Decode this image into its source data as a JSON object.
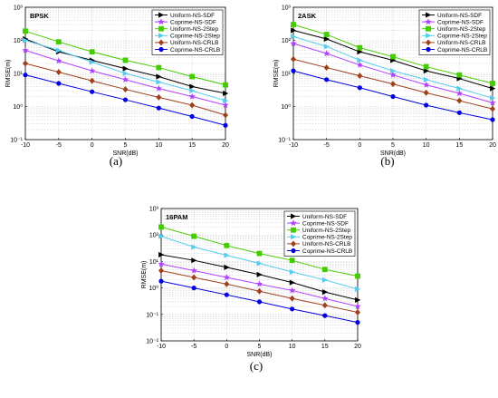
{
  "legend": [
    "Uniform-NS-SDF",
    "Coprime-NS-SDF",
    "Uniform-NS-2Step",
    "Coprime-NS-2Step",
    "Uniform-NS-CRLB",
    "Coprime-NS-CRLB"
  ],
  "colors": [
    "#000000",
    "#b040ff",
    "#44cc00",
    "#55ccee",
    "#a0401a",
    "#0000e0"
  ],
  "markers": [
    "triangle-right",
    "star",
    "square",
    "triangle-right",
    "diamond",
    "circle"
  ],
  "chart_data": [
    {
      "type": "line",
      "panel": "(a)",
      "label": "BPSK",
      "xlabel": "SNR(dB)",
      "ylabel": "RMSE(m)",
      "xlim": [
        -10,
        20
      ],
      "xticks": [
        -10,
        -5,
        0,
        5,
        10,
        15,
        20
      ],
      "ylim": [
        0.1,
        1000
      ],
      "yscale": "log",
      "yticklabels": [
        "10⁻¹",
        "10⁰",
        "10¹",
        "10²",
        "10³"
      ],
      "grid": true,
      "legend_position": "top-right",
      "x": [
        -10,
        -5,
        0,
        5,
        10,
        15,
        20
      ],
      "series": [
        {
          "name": "Uniform-NS-SDF",
          "values": [
            110,
            45,
            25,
            14,
            8,
            4,
            2.5
          ]
        },
        {
          "name": "Coprime-NS-SDF",
          "values": [
            50,
            24,
            12,
            6.5,
            3.5,
            2,
            1.1
          ]
        },
        {
          "name": "Uniform-NS-2Step",
          "values": [
            190,
            90,
            45,
            25,
            15,
            8,
            4.5
          ]
        },
        {
          "name": "Coprime-NS-2Step",
          "values": [
            100,
            50,
            22,
            10,
            5.5,
            3,
            1.5
          ]
        },
        {
          "name": "Uniform-NS-CRLB",
          "values": [
            20,
            11,
            6,
            3.3,
            1.9,
            1.1,
            0.55
          ]
        },
        {
          "name": "Coprime-NS-CRLB",
          "values": [
            9,
            5,
            2.8,
            1.6,
            0.9,
            0.5,
            0.27
          ]
        }
      ]
    },
    {
      "type": "line",
      "panel": "(b)",
      "label": "2ASK",
      "xlabel": "SNR(dB)",
      "ylabel": "RMSE(m)",
      "xlim": [
        -10,
        20
      ],
      "xticks": [
        -10,
        -5,
        0,
        5,
        10,
        15,
        20
      ],
      "ylim": [
        0.1,
        1000
      ],
      "yscale": "log",
      "yticklabels": [
        "10⁻¹",
        "10⁰",
        "10¹",
        "10²",
        "10³"
      ],
      "grid": true,
      "legend_position": "top-right",
      "x": [
        -10,
        -5,
        0,
        5,
        10,
        15,
        20
      ],
      "series": [
        {
          "name": "Uniform-NS-SDF",
          "values": [
            200,
            110,
            45,
            25,
            12,
            7,
            3.5
          ]
        },
        {
          "name": "Coprime-NS-SDF",
          "values": [
            80,
            40,
            18,
            9,
            4.5,
            2.5,
            1.3
          ]
        },
        {
          "name": "Uniform-NS-2Step",
          "values": [
            300,
            150,
            60,
            32,
            16,
            9,
            5
          ]
        },
        {
          "name": "Coprime-NS-2Step",
          "values": [
            130,
            65,
            25,
            12,
            6.5,
            3.5,
            1.8
          ]
        },
        {
          "name": "Uniform-NS-CRLB",
          "values": [
            27,
            15,
            8.5,
            4.8,
            2.6,
            1.5,
            0.85
          ]
        },
        {
          "name": "Coprime-NS-CRLB",
          "values": [
            12,
            6.5,
            3.7,
            2,
            1.1,
            0.65,
            0.4
          ]
        }
      ]
    },
    {
      "type": "line",
      "panel": "(c)",
      "label": "16PAM",
      "xlabel": "SNR(dB)",
      "ylabel": "RMSE(m)",
      "xlim": [
        -10,
        20
      ],
      "xticks": [
        -10,
        -5,
        0,
        5,
        10,
        15,
        20
      ],
      "ylim": [
        0.01,
        1000
      ],
      "yscale": "log",
      "yticklabels": [
        "10⁻²",
        "10⁻¹",
        "10⁰",
        "10¹",
        "10²",
        "10³"
      ],
      "grid": true,
      "legend_position": "top-right",
      "x": [
        -10,
        -5,
        0,
        5,
        10,
        15,
        20
      ],
      "series": [
        {
          "name": "Uniform-NS-SDF",
          "values": [
            18,
            11,
            6,
            3.2,
            1.6,
            0.7,
            0.35
          ]
        },
        {
          "name": "Coprime-NS-SDF",
          "values": [
            8,
            4.5,
            2.5,
            1.4,
            0.8,
            0.4,
            0.2
          ]
        },
        {
          "name": "Uniform-NS-2Step",
          "values": [
            200,
            90,
            40,
            20,
            11,
            5,
            2.8
          ]
        },
        {
          "name": "Coprime-NS-2Step",
          "values": [
            90,
            35,
            17,
            8.5,
            4,
            2,
            0.9
          ]
        },
        {
          "name": "Uniform-NS-CRLB",
          "values": [
            4.5,
            2.5,
            1.4,
            0.75,
            0.4,
            0.22,
            0.12
          ]
        },
        {
          "name": "Coprime-NS-CRLB",
          "values": [
            1.8,
            1,
            0.55,
            0.3,
            0.16,
            0.09,
            0.05
          ]
        }
      ]
    }
  ]
}
